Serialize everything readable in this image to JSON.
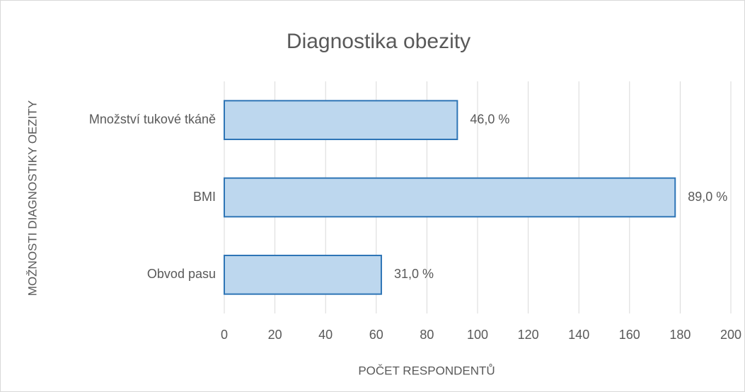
{
  "chart_data": {
    "type": "bar",
    "orientation": "horizontal",
    "title": "Diagnostika obezity",
    "x_label": "POČET RESPONDENTŮ",
    "y_label": "MOŽNOSTI DIAGNOSTIKY OEZITY",
    "categories": [
      "Množství tukové tkáně",
      "BMI",
      "Obvod pasu"
    ],
    "values": [
      92,
      178,
      62
    ],
    "value_labels": [
      "46,0 %",
      "89,0 %",
      "31,0 %"
    ],
    "color": "#bdd7ee",
    "edge_color": "#2e75b6",
    "xlim": [
      0,
      200
    ],
    "xticks": [
      0,
      20,
      40,
      60,
      80,
      100,
      120,
      140,
      160,
      180,
      200
    ],
    "grid": true
  }
}
